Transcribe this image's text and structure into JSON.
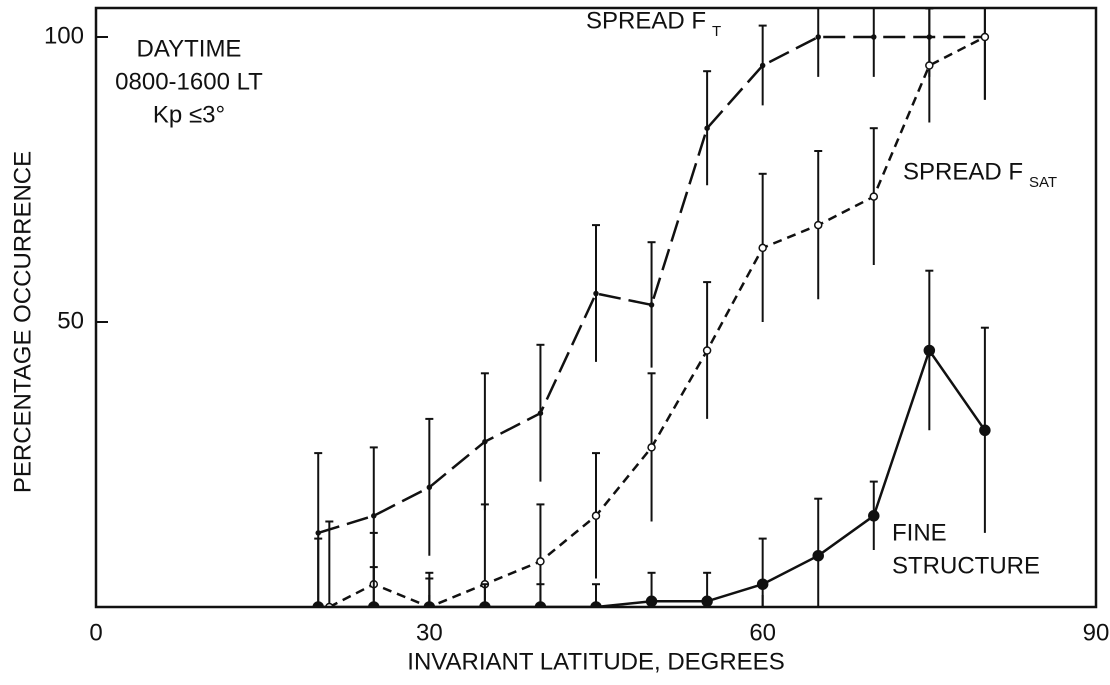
{
  "chart_data": {
    "type": "line",
    "xlabel": "INVARIANT LATITUDE, DEGREES",
    "ylabel": "PERCENTAGE OCCURRENCE",
    "annotations": [
      "DAYTIME",
      "0800-1600 LT",
      "Kp ≤3°"
    ],
    "xlim": [
      0,
      90
    ],
    "xticks": [
      0,
      30,
      60,
      90
    ],
    "ylim": [
      0,
      100
    ],
    "yticks": [
      50,
      100
    ],
    "color": "#111111",
    "series": [
      {
        "name": "SPREAD F",
        "sub": "T",
        "linestyle": "longdash",
        "marker": "none",
        "x": [
          20,
          25,
          30,
          35,
          40,
          45,
          50,
          55,
          60,
          65,
          70,
          75,
          80
        ],
        "values": [
          13,
          16,
          21,
          29,
          34,
          55,
          53,
          84,
          95,
          100,
          100,
          100,
          100
        ],
        "errors": [
          14,
          12,
          12,
          12,
          12,
          12,
          11,
          10,
          7,
          7,
          7,
          7,
          11
        ]
      },
      {
        "name": "SPREAD F",
        "sub": "SAT",
        "linestyle": "dashed",
        "marker": "open",
        "x": [
          21,
          25,
          30,
          35,
          40,
          45,
          50,
          55,
          60,
          65,
          70,
          75,
          80
        ],
        "values": [
          0,
          4,
          0,
          4,
          8,
          16,
          28,
          45,
          63,
          67,
          72,
          95,
          100
        ],
        "errors": [
          15,
          9,
          6,
          14,
          10,
          11,
          13,
          12,
          13,
          13,
          12,
          10,
          11
        ]
      },
      {
        "name_lines": [
          "FINE",
          "STRUCTURE"
        ],
        "linestyle": "solid",
        "marker": "filled",
        "x": [
          20,
          25,
          30,
          35,
          40,
          45,
          50,
          55,
          60,
          65,
          70,
          75,
          80
        ],
        "values": [
          0,
          0,
          0,
          0,
          0,
          0,
          1,
          1,
          4,
          9,
          16,
          45,
          31
        ],
        "errors": [
          12,
          7,
          5,
          4,
          4,
          4,
          5,
          5,
          8,
          10,
          6,
          14,
          18
        ]
      }
    ]
  }
}
